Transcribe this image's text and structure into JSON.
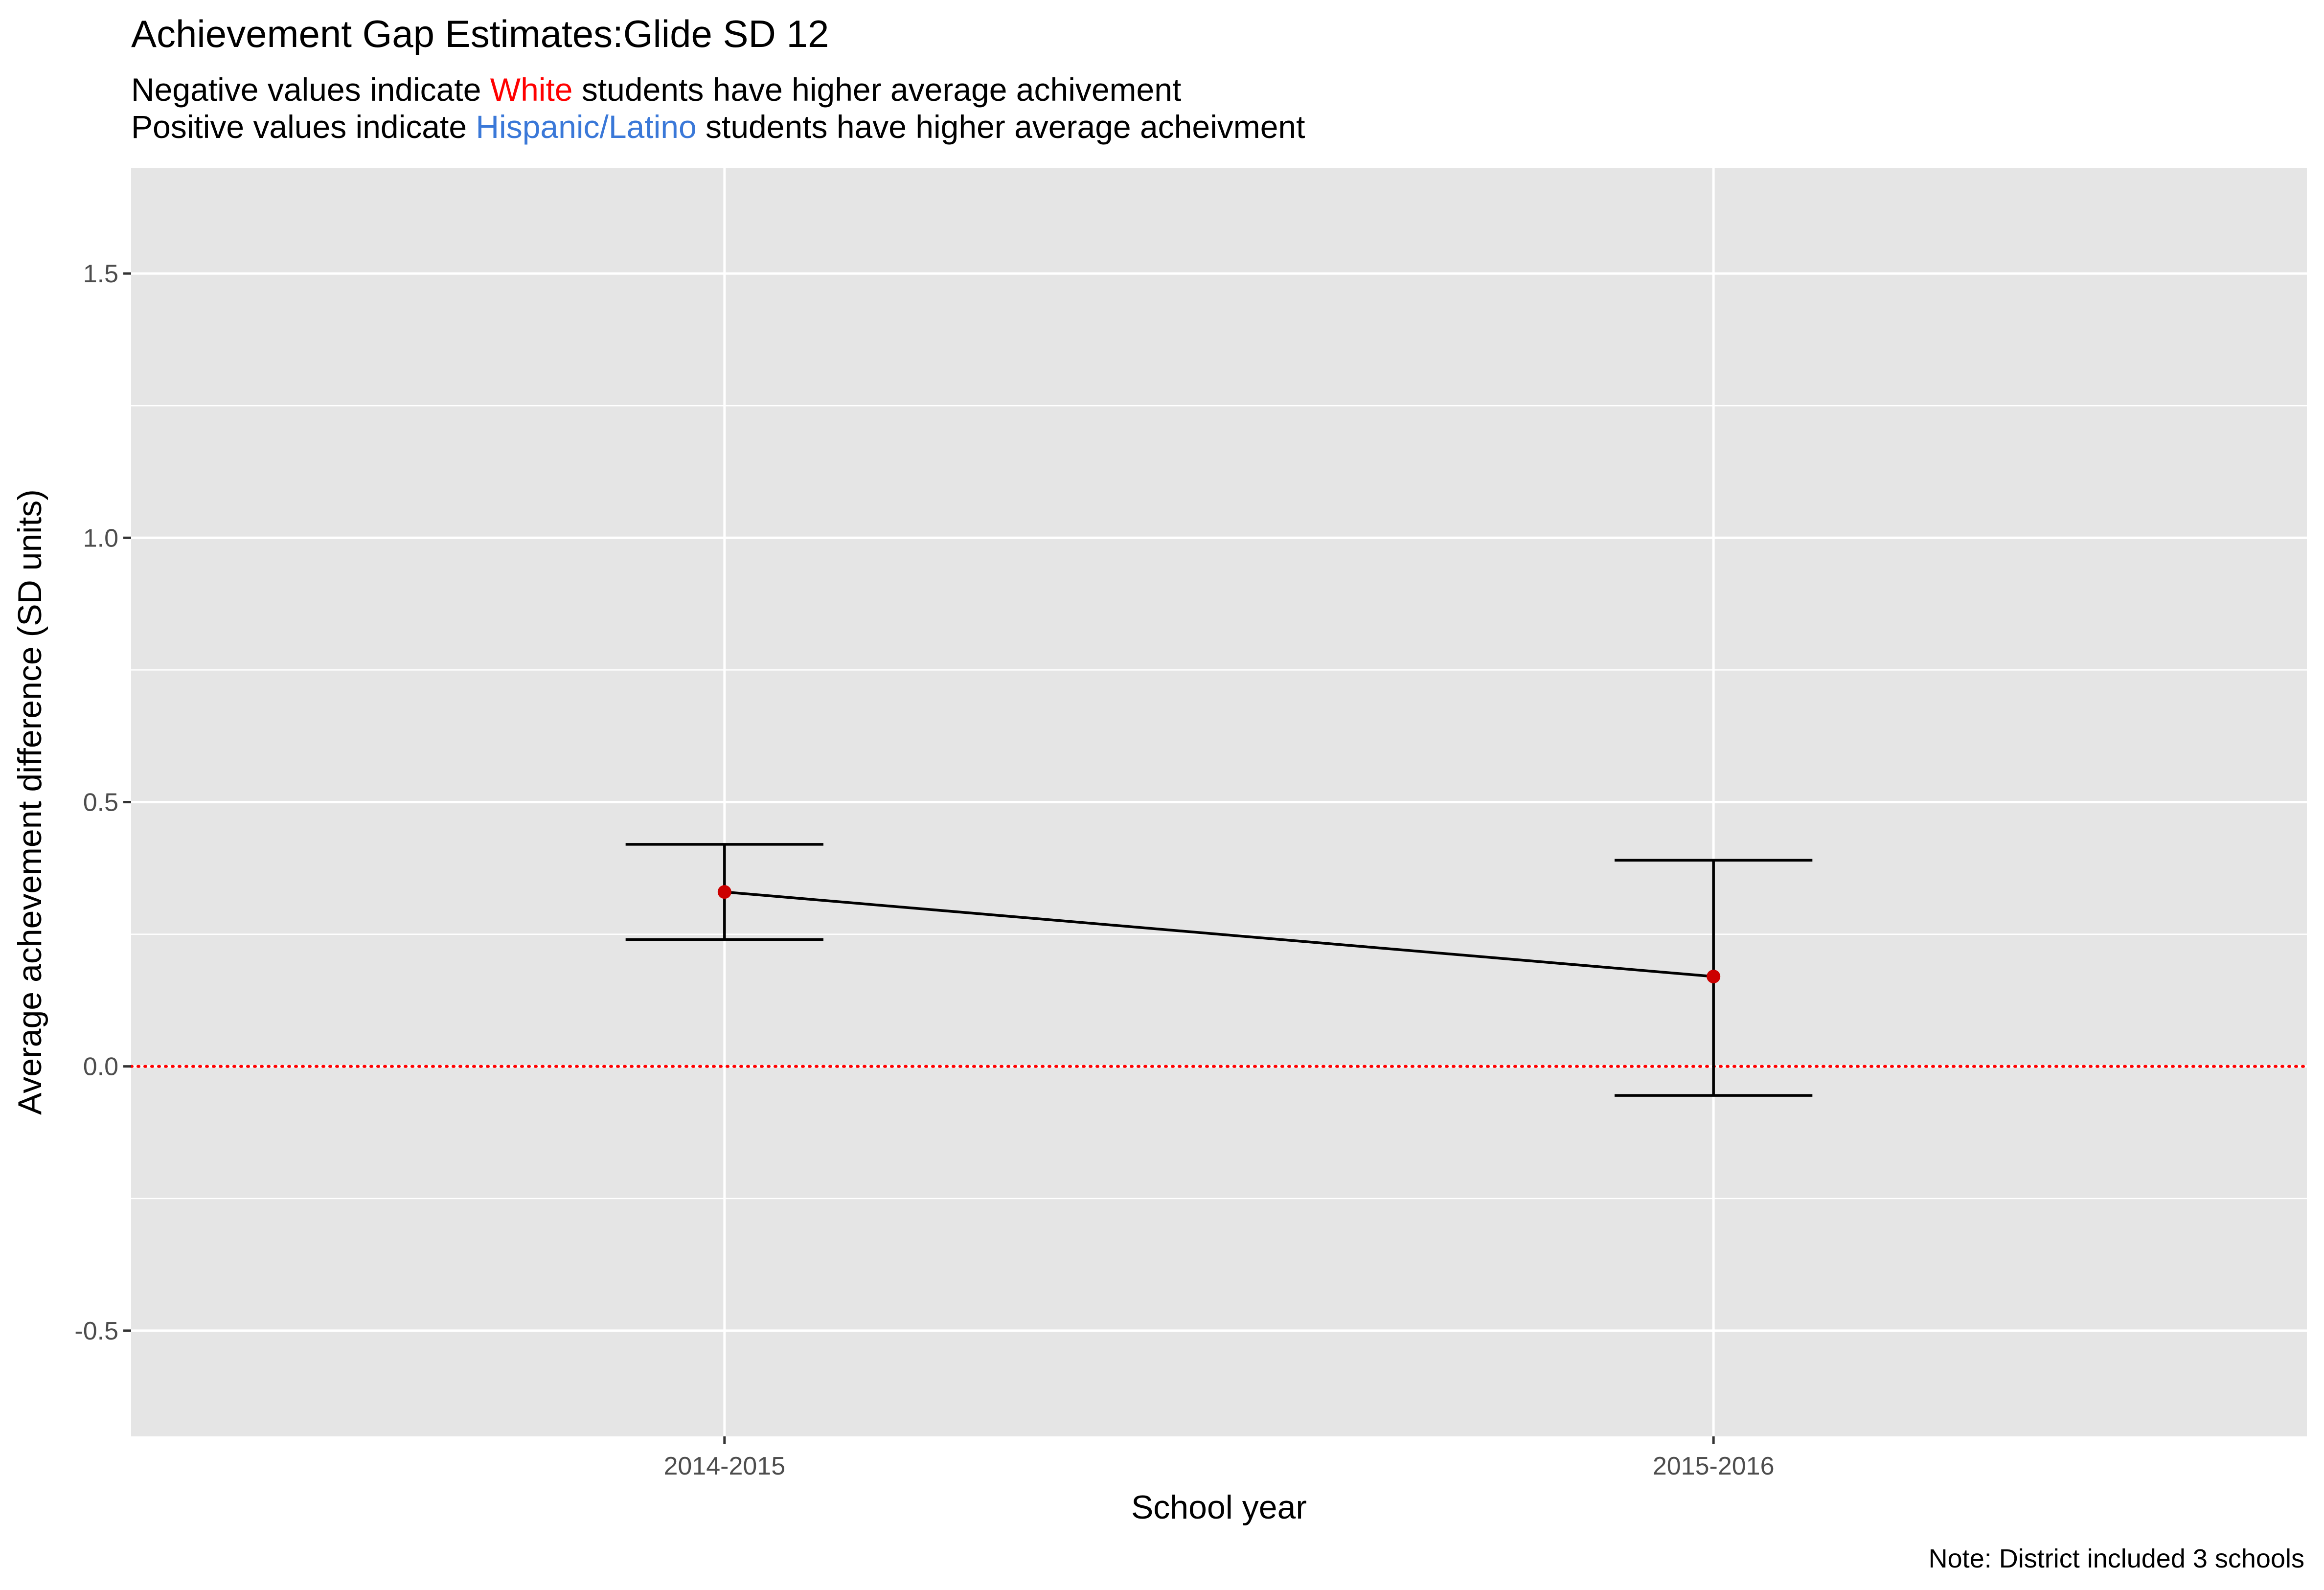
{
  "chart": {
    "title": "Achievement Gap Estimates:Glide SD 12",
    "subtitle": {
      "line1": {
        "before": "Negative values indicate ",
        "highlight": "White",
        "after": " students have higher average achivement",
        "highlight_color": "#ff0000"
      },
      "line2": {
        "before": "Positive values indicate ",
        "highlight": "Hispanic/Latino",
        "after": " students have higher average acheivment",
        "highlight_color": "#3a78d8"
      }
    },
    "caption": "Note: District included 3 schools",
    "colors": {
      "panel_background": "#e5e5e5",
      "gridline": "#ffffff",
      "point": "#cc0000",
      "line": "#000000",
      "reference_line": "#ff0000"
    }
  },
  "chart_data": {
    "type": "line",
    "xlabel": "School year",
    "ylabel": "Average achevement difference (SD units)",
    "categories": [
      "2014-2015",
      "2015-2016"
    ],
    "values": [
      0.33,
      0.17
    ],
    "error_bars": {
      "lower": [
        0.24,
        -0.055
      ],
      "upper": [
        0.42,
        0.39
      ]
    },
    "ylim": [
      -0.7,
      1.7
    ],
    "yticks": [
      -0.5,
      0.0,
      0.5,
      1.0,
      1.5
    ],
    "ytick_labels": [
      "-0.5",
      "0.0",
      "0.5",
      "1.0",
      "1.5"
    ],
    "reference_line": {
      "y": 0,
      "style": "dotted"
    },
    "grid": true,
    "legend": "none"
  }
}
